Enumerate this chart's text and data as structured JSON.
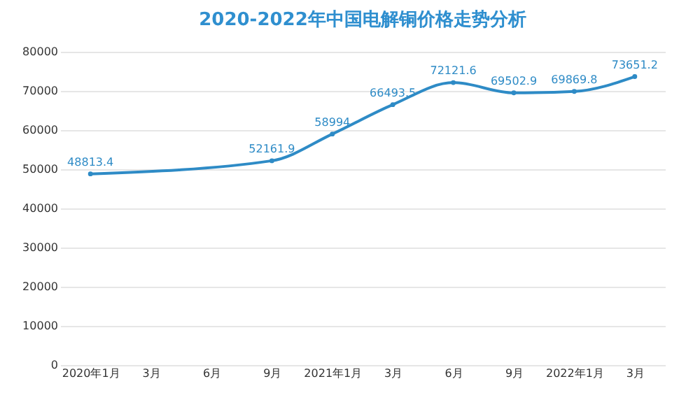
{
  "chart_data": {
    "type": "line",
    "title": "2020-2022年中国电解铜价格走势分析",
    "categories": [
      "2020年1月",
      "3月",
      "6月",
      "9月",
      "2021年1月",
      "3月",
      "6月",
      "9月",
      "2022年1月",
      "3月"
    ],
    "series": [
      {
        "color": "#2e8bc6",
        "values": [
          48813.4,
          null,
          null,
          52161.9,
          58994,
          66493.5,
          72121.6,
          69502.9,
          69869.8,
          73651.2
        ]
      }
    ],
    "ylim": [
      0,
      80000
    ],
    "yticks": [
      0,
      10000,
      20000,
      30000,
      40000,
      50000,
      60000,
      70000,
      80000
    ],
    "grid": "y",
    "marker": "circle",
    "data_labels": true
  }
}
